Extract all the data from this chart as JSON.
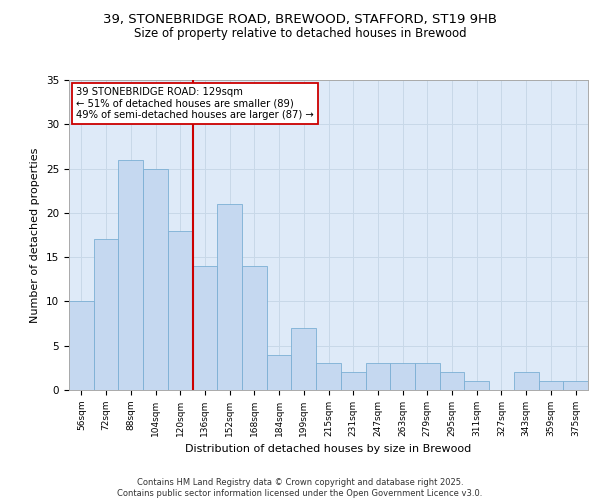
{
  "title1": "39, STONEBRIDGE ROAD, BREWOOD, STAFFORD, ST19 9HB",
  "title2": "Size of property relative to detached houses in Brewood",
  "xlabel": "Distribution of detached houses by size in Brewood",
  "ylabel": "Number of detached properties",
  "categories": [
    "56sqm",
    "72sqm",
    "88sqm",
    "104sqm",
    "120sqm",
    "136sqm",
    "152sqm",
    "168sqm",
    "184sqm",
    "199sqm",
    "215sqm",
    "231sqm",
    "247sqm",
    "263sqm",
    "279sqm",
    "295sqm",
    "311sqm",
    "327sqm",
    "343sqm",
    "359sqm",
    "375sqm"
  ],
  "values": [
    10,
    17,
    26,
    25,
    18,
    14,
    21,
    14,
    4,
    7,
    3,
    2,
    3,
    3,
    3,
    2,
    1,
    0,
    2,
    1,
    1
  ],
  "bar_color": "#c5d8f0",
  "bar_edge_color": "#7bafd4",
  "vline_color": "#cc0000",
  "annotation_text": "39 STONEBRIDGE ROAD: 129sqm\n← 51% of detached houses are smaller (89)\n49% of semi-detached houses are larger (87) →",
  "annotation_box_color": "#ffffff",
  "annotation_box_edge": "#cc0000",
  "grid_color": "#c8d8e8",
  "background_color": "#deeaf8",
  "ylim": [
    0,
    35
  ],
  "yticks": [
    0,
    5,
    10,
    15,
    20,
    25,
    30,
    35
  ],
  "footer": "Contains HM Land Registry data © Crown copyright and database right 2025.\nContains public sector information licensed under the Open Government Licence v3.0.",
  "vline_pos": 5.0
}
